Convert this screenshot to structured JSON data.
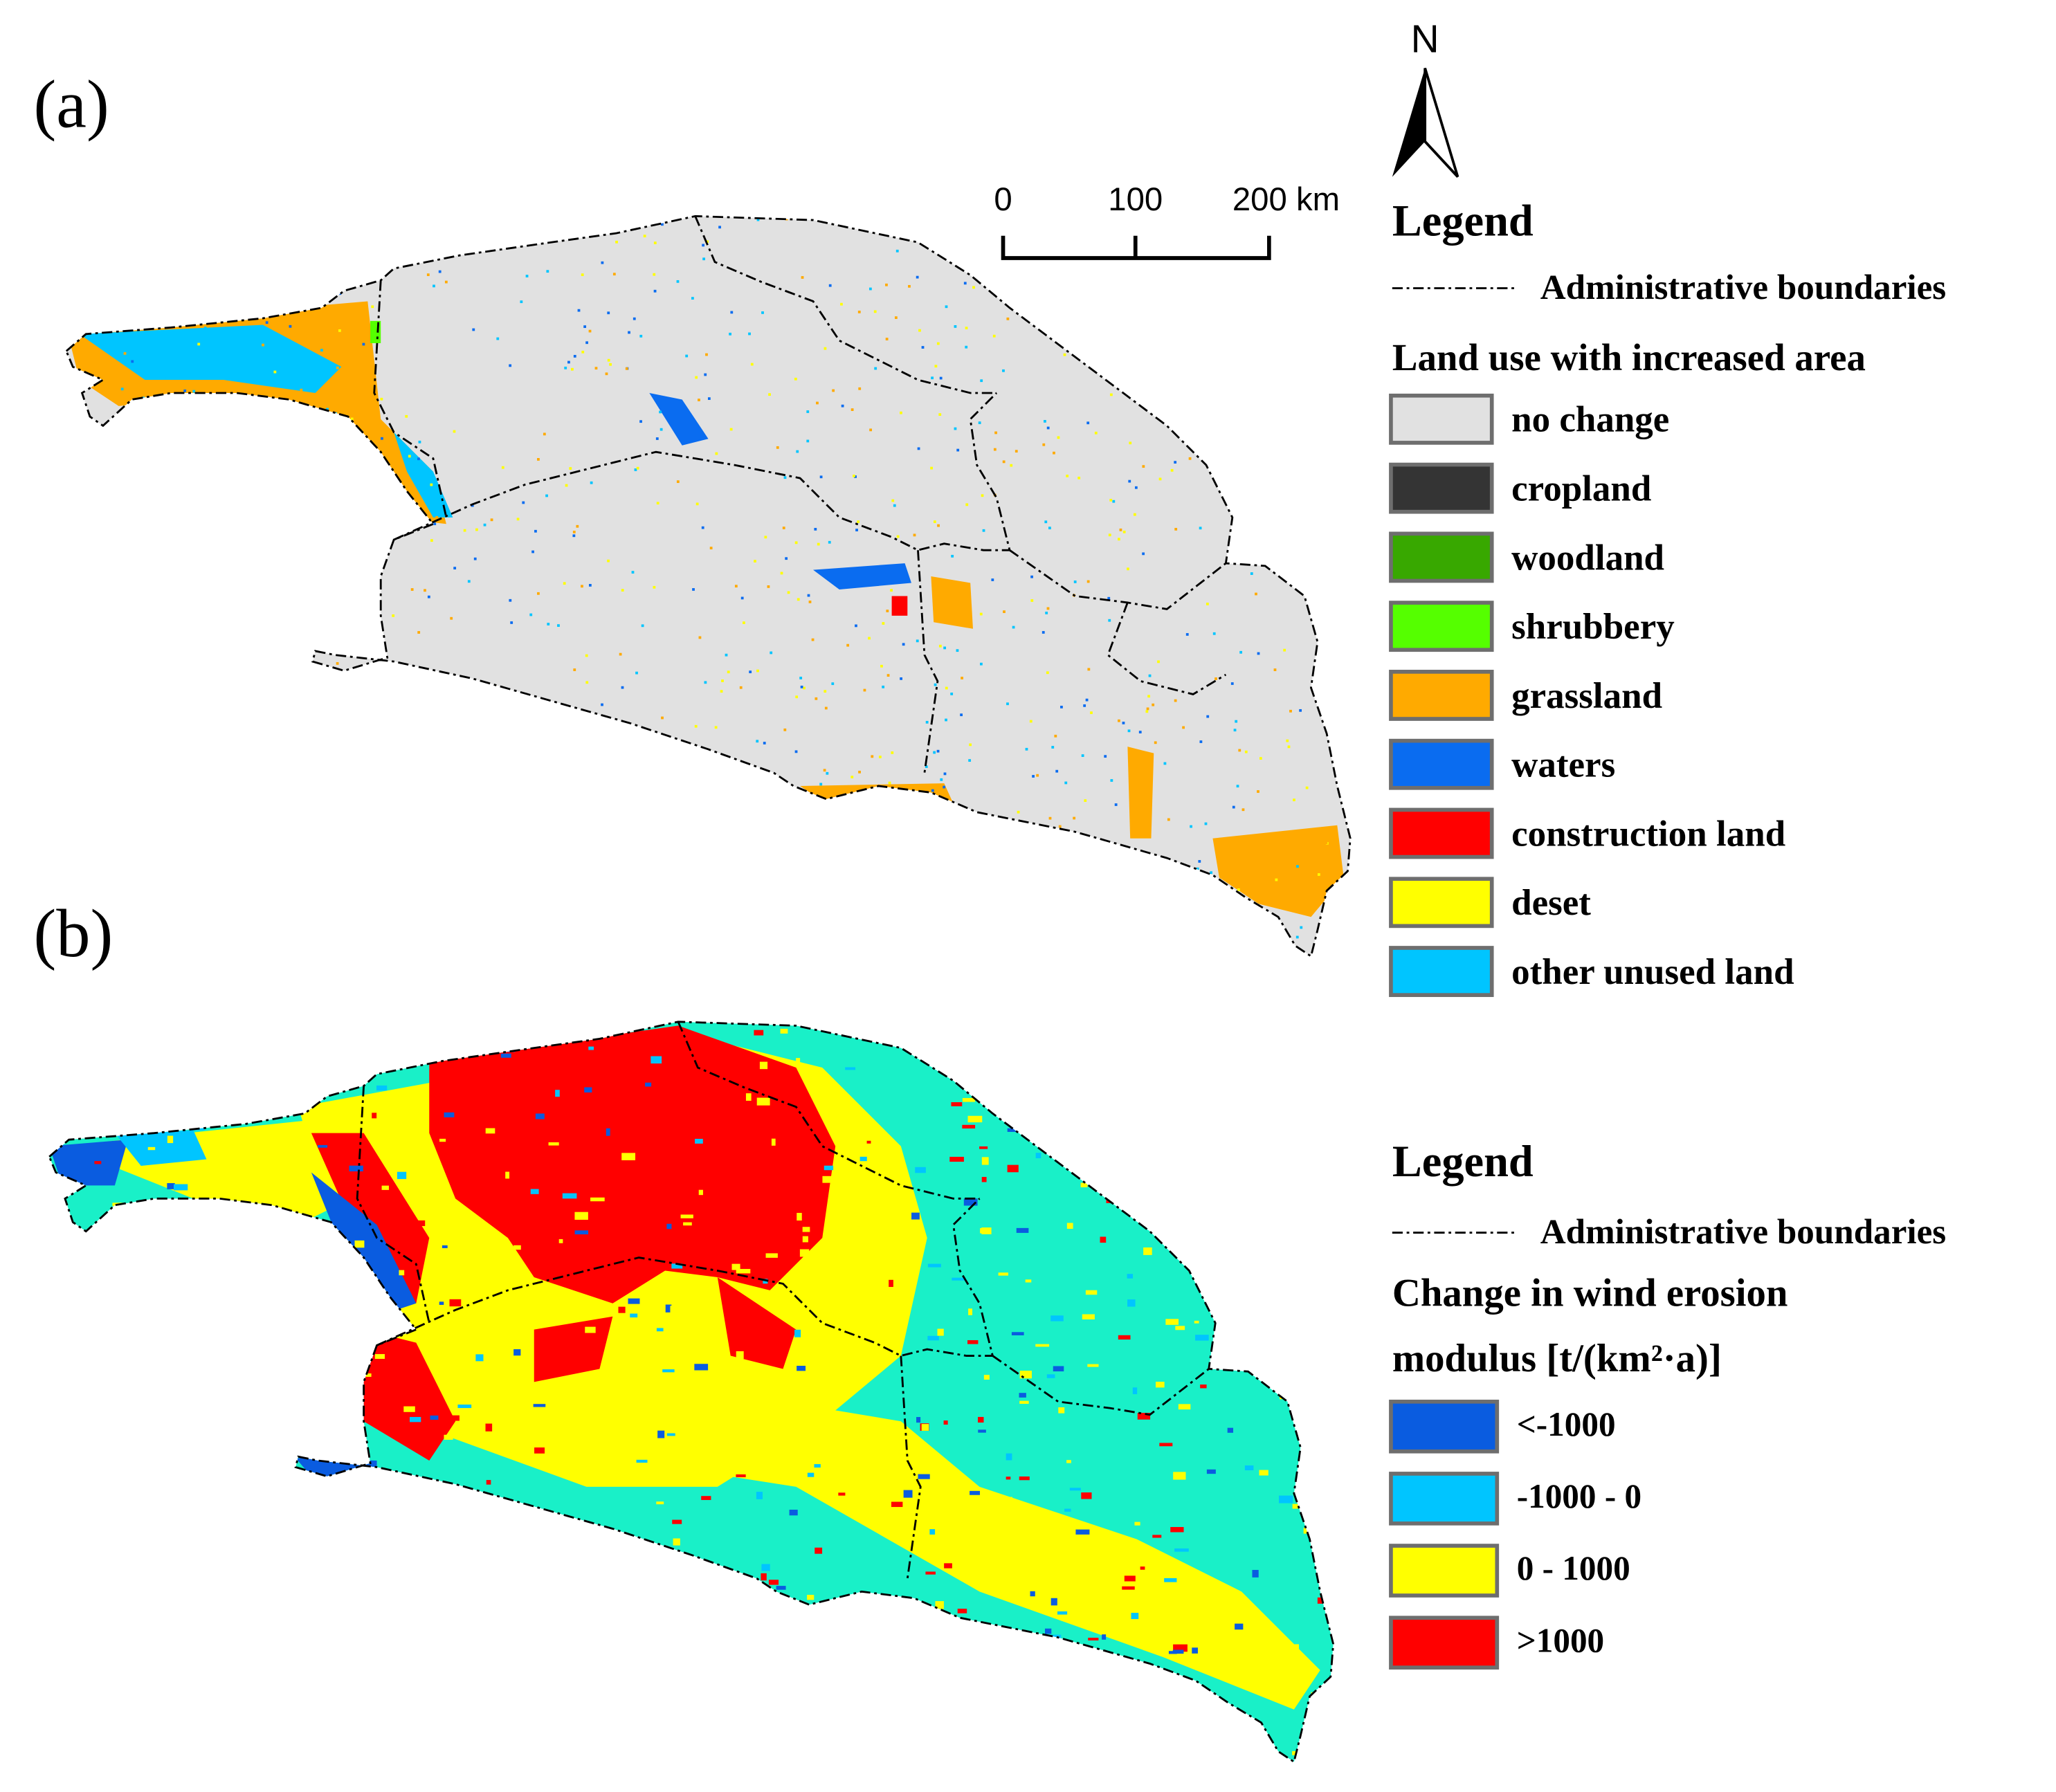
{
  "panels": [
    {
      "label": "(a)"
    },
    {
      "label": "(b)"
    }
  ],
  "north_arrow": "N",
  "scale_bar": [
    "0",
    "100",
    "200 km"
  ],
  "legend_a": {
    "title": "Legend",
    "boundary": "Administrative boundaries",
    "subtitle": "Land use with increased area",
    "items": [
      {
        "label": "no change",
        "color": "#e1e1e1"
      },
      {
        "label": "cropland",
        "color": "#343434"
      },
      {
        "label": "woodland",
        "color": "#38a800"
      },
      {
        "label": "shrubbery",
        "color": "#55ff00"
      },
      {
        "label": "grassland",
        "color": "#ffaa00"
      },
      {
        "label": "waters",
        "color": "#0a6cf0"
      },
      {
        "label": "construction land",
        "color": "#ff0000"
      },
      {
        "label": "deset",
        "color": "#ffff00"
      },
      {
        "label": "other unused land",
        "color": "#00c5ff"
      }
    ]
  },
  "legend_b": {
    "title": "Legend",
    "boundary": "Administrative boundaries",
    "subtitle": "Change in wind erosion",
    "subtitle2": "modulus [t/(km²·a)]",
    "items": [
      {
        "label": "<-1000",
        "color": "#0a5ce0"
      },
      {
        "label": "-1000 - 0",
        "color": "#00c5ff"
      },
      {
        "label": "0 - 1000",
        "color": "#ffff00"
      },
      {
        "label": ">1000",
        "color": "#ff0000"
      }
    ]
  }
}
